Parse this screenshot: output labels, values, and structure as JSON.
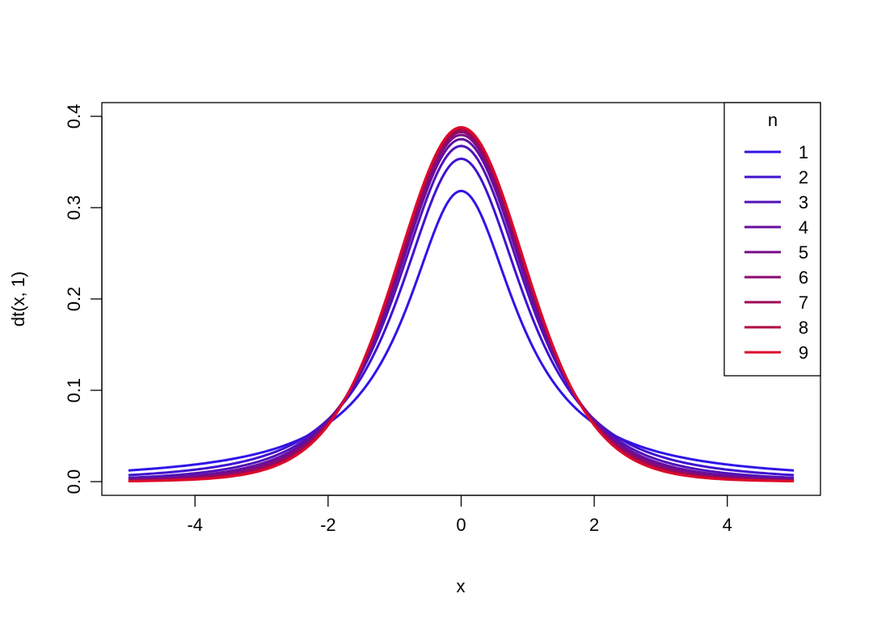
{
  "chart_data": {
    "type": "line",
    "xlabel": "x",
    "ylabel": "dt(x, 1)",
    "xlim": [
      -5.4,
      5.4
    ],
    "ylim": [
      -0.015,
      0.415
    ],
    "x_range": [
      -5,
      5
    ],
    "x_ticks": [
      {
        "value": -4,
        "label": "-4"
      },
      {
        "value": -2,
        "label": "-2"
      },
      {
        "value": 0,
        "label": "0"
      },
      {
        "value": 2,
        "label": "2"
      },
      {
        "value": 4,
        "label": "4"
      }
    ],
    "y_ticks": [
      {
        "value": 0.0,
        "label": "0.0"
      },
      {
        "value": 0.1,
        "label": "0.1"
      },
      {
        "value": 0.2,
        "label": "0.2"
      },
      {
        "value": 0.3,
        "label": "0.3"
      },
      {
        "value": 0.4,
        "label": "0.4"
      }
    ],
    "grid": false,
    "legend": {
      "title": "n",
      "position": "top-right"
    },
    "series": [
      {
        "name": "1",
        "df": 1,
        "color": "#2f14e8"
      },
      {
        "name": "2",
        "df": 2,
        "color": "#4012d0"
      },
      {
        "name": "3",
        "df": 3,
        "color": "#5210b8"
      },
      {
        "name": "4",
        "df": 4,
        "color": "#650ea0"
      },
      {
        "name": "5",
        "df": 5,
        "color": "#780c88"
      },
      {
        "name": "6",
        "df": 6,
        "color": "#8b0a70"
      },
      {
        "name": "7",
        "df": 7,
        "color": "#9e0858"
      },
      {
        "name": "8",
        "df": 8,
        "color": "#b10640"
      },
      {
        "name": "9",
        "df": 9,
        "color": "#dd0a2c"
      }
    ]
  }
}
